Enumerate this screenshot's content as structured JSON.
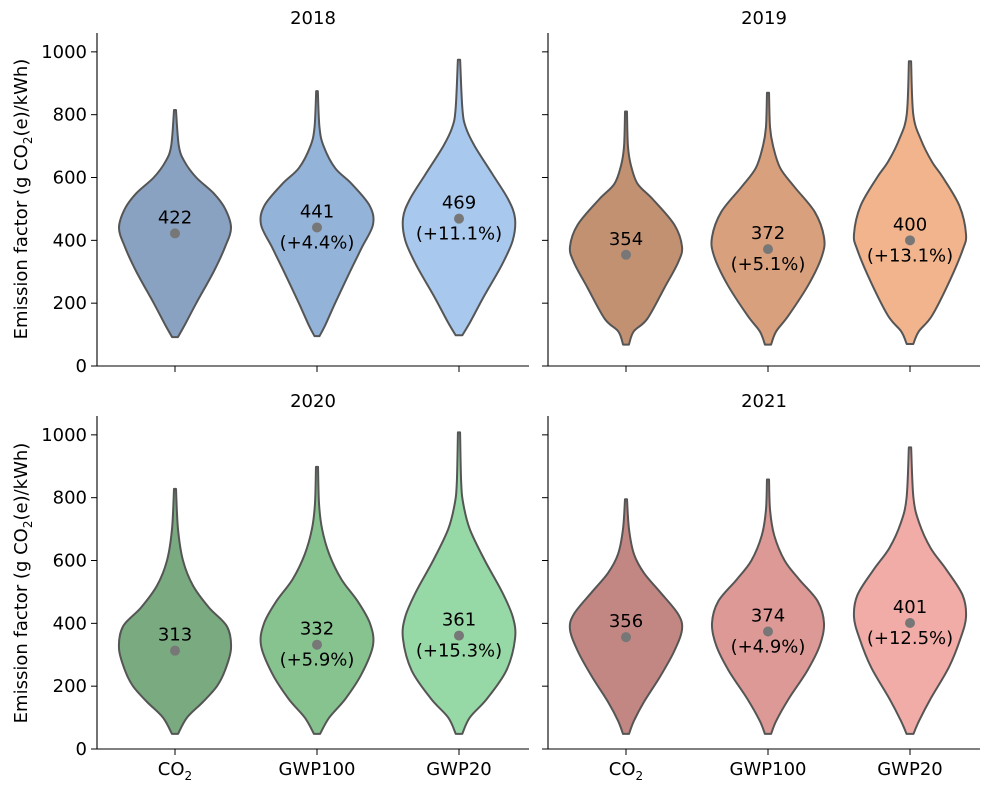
{
  "figure": {
    "ylabel": "Emission factor (g CO",
    "ylabel_sub": "2",
    "ylabel_tail": "(e)/kWh)",
    "categories": [
      {
        "main": "CO",
        "sub": "2"
      },
      {
        "main": "GWP100",
        "sub": ""
      },
      {
        "main": "GWP20",
        "sub": ""
      }
    ],
    "yticks": [
      "0",
      "200",
      "400",
      "600",
      "800",
      "1000"
    ]
  },
  "chart_data": [
    {
      "type": "violin",
      "title": "2018",
      "ylim": [
        0,
        1060
      ],
      "colors": [
        "#8aa2c1",
        "#94b3d9",
        "#a8c8ee"
      ],
      "series": [
        {
          "category": "CO2",
          "min": 92,
          "max": 815,
          "median": 422,
          "label": "422",
          "pct": "",
          "profile": [
            [
              92,
              3
            ],
            [
              130,
              10
            ],
            [
              200,
              22
            ],
            [
              300,
              40
            ],
            [
              380,
              52
            ],
            [
              440,
              58
            ],
            [
              500,
              52
            ],
            [
              550,
              40
            ],
            [
              600,
              22
            ],
            [
              650,
              10
            ],
            [
              700,
              4
            ],
            [
              815,
              1
            ]
          ]
        },
        {
          "category": "GWP100",
          "min": 95,
          "max": 875,
          "median": 441,
          "label": "441",
          "pct": "(+4.4%)",
          "profile": [
            [
              95,
              3
            ],
            [
              130,
              10
            ],
            [
              200,
              22
            ],
            [
              300,
              40
            ],
            [
              380,
              55
            ],
            [
              450,
              68
            ],
            [
              510,
              64
            ],
            [
              580,
              42
            ],
            [
              630,
              22
            ],
            [
              700,
              8
            ],
            [
              760,
              3
            ],
            [
              875,
              1
            ]
          ]
        },
        {
          "category": "GWP20",
          "min": 98,
          "max": 975,
          "median": 469,
          "label": "469",
          "pct": "(+11.1%)",
          "profile": [
            [
              98,
              3
            ],
            [
              140,
              10
            ],
            [
              220,
              22
            ],
            [
              320,
              38
            ],
            [
              400,
              48
            ],
            [
              470,
              50
            ],
            [
              530,
              44
            ],
            [
              610,
              30
            ],
            [
              700,
              14
            ],
            [
              760,
              6
            ],
            [
              820,
              3
            ],
            [
              975,
              1
            ]
          ]
        }
      ]
    },
    {
      "type": "violin",
      "title": "2019",
      "ylim": [
        0,
        1060
      ],
      "colors": [
        "#c29172",
        "#d9a07d",
        "#f2b48d"
      ],
      "series": [
        {
          "category": "CO2",
          "min": 68,
          "max": 810,
          "median": 354,
          "label": "354",
          "pct": "",
          "profile": [
            [
              68,
              3
            ],
            [
              110,
              8
            ],
            [
              150,
              22
            ],
            [
              250,
              40
            ],
            [
              330,
              54
            ],
            [
              380,
              58
            ],
            [
              450,
              50
            ],
            [
              530,
              28
            ],
            [
              580,
              12
            ],
            [
              640,
              5
            ],
            [
              700,
              2
            ],
            [
              810,
              1
            ]
          ]
        },
        {
          "category": "GWP100",
          "min": 68,
          "max": 870,
          "median": 372,
          "label": "372",
          "pct": "(+5.1%)",
          "profile": [
            [
              68,
              3
            ],
            [
              110,
              8
            ],
            [
              160,
              20
            ],
            [
              260,
              40
            ],
            [
              350,
              53
            ],
            [
              410,
              55
            ],
            [
              490,
              46
            ],
            [
              570,
              26
            ],
            [
              630,
              12
            ],
            [
              700,
              5
            ],
            [
              760,
              2
            ],
            [
              870,
              1
            ]
          ]
        },
        {
          "category": "GWP20",
          "min": 70,
          "max": 970,
          "median": 400,
          "label": "400",
          "pct": "(+13.1%)",
          "profile": [
            [
              70,
              3
            ],
            [
              110,
              8
            ],
            [
              160,
              20
            ],
            [
              270,
              36
            ],
            [
              370,
              48
            ],
            [
              420,
              51
            ],
            [
              510,
              45
            ],
            [
              600,
              30
            ],
            [
              650,
              20
            ],
            [
              720,
              10
            ],
            [
              800,
              3
            ],
            [
              970,
              1
            ]
          ]
        }
      ]
    },
    {
      "type": "violin",
      "title": "2020",
      "ylim": [
        0,
        1060
      ],
      "colors": [
        "#79aa80",
        "#87c38f",
        "#97d9a6"
      ],
      "series": [
        {
          "category": "CO2",
          "min": 48,
          "max": 828,
          "median": 313,
          "label": "313",
          "pct": "",
          "profile": [
            [
              48,
              3
            ],
            [
              100,
              12
            ],
            [
              150,
              28
            ],
            [
              200,
              42
            ],
            [
              250,
              50
            ],
            [
              320,
              56
            ],
            [
              390,
              52
            ],
            [
              450,
              34
            ],
            [
              520,
              18
            ],
            [
              600,
              8
            ],
            [
              700,
              3
            ],
            [
              828,
              1
            ]
          ]
        },
        {
          "category": "GWP100",
          "min": 48,
          "max": 898,
          "median": 332,
          "label": "332",
          "pct": "(+5.9%)",
          "profile": [
            [
              48,
              3
            ],
            [
              100,
              12
            ],
            [
              160,
              28
            ],
            [
              240,
              44
            ],
            [
              330,
              55
            ],
            [
              400,
              52
            ],
            [
              470,
              40
            ],
            [
              540,
              24
            ],
            [
              620,
              12
            ],
            [
              700,
              5
            ],
            [
              780,
              2
            ],
            [
              898,
              1
            ]
          ]
        },
        {
          "category": "GWP20",
          "min": 48,
          "max": 1008,
          "median": 361,
          "label": "361",
          "pct": "(+15.3%)",
          "profile": [
            [
              48,
              3
            ],
            [
              100,
              10
            ],
            [
              160,
              26
            ],
            [
              250,
              44
            ],
            [
              350,
              52
            ],
            [
              420,
              50
            ],
            [
              500,
              40
            ],
            [
              600,
              24
            ],
            [
              700,
              10
            ],
            [
              780,
              4
            ],
            [
              850,
              2
            ],
            [
              1008,
              1
            ]
          ]
        }
      ]
    },
    {
      "type": "violin",
      "title": "2021",
      "ylim": [
        0,
        1060
      ],
      "colors": [
        "#c28783",
        "#dd9995",
        "#f2aca7"
      ],
      "series": [
        {
          "category": "CO2",
          "min": 48,
          "max": 795,
          "median": 356,
          "label": "356",
          "pct": "",
          "profile": [
            [
              48,
              3
            ],
            [
              90,
              8
            ],
            [
              150,
              18
            ],
            [
              230,
              34
            ],
            [
              310,
              48
            ],
            [
              380,
              56
            ],
            [
              430,
              52
            ],
            [
              500,
              34
            ],
            [
              560,
              18
            ],
            [
              620,
              8
            ],
            [
              700,
              3
            ],
            [
              795,
              1
            ]
          ]
        },
        {
          "category": "GWP100",
          "min": 48,
          "max": 858,
          "median": 374,
          "label": "374",
          "pct": "(+4.9%)",
          "profile": [
            [
              48,
              3
            ],
            [
              90,
              8
            ],
            [
              160,
              20
            ],
            [
              250,
              38
            ],
            [
              330,
              50
            ],
            [
              400,
              54
            ],
            [
              470,
              48
            ],
            [
              540,
              30
            ],
            [
              600,
              16
            ],
            [
              680,
              6
            ],
            [
              760,
              2
            ],
            [
              858,
              1
            ]
          ]
        },
        {
          "category": "GWP20",
          "min": 48,
          "max": 960,
          "median": 401,
          "label": "401",
          "pct": "(+12.5%)",
          "profile": [
            [
              48,
              3
            ],
            [
              90,
              8
            ],
            [
              160,
              18
            ],
            [
              260,
              34
            ],
            [
              350,
              44
            ],
            [
              420,
              49
            ],
            [
              490,
              46
            ],
            [
              570,
              32
            ],
            [
              640,
              18
            ],
            [
              720,
              8
            ],
            [
              800,
              3
            ],
            [
              960,
              1
            ]
          ]
        }
      ]
    }
  ]
}
